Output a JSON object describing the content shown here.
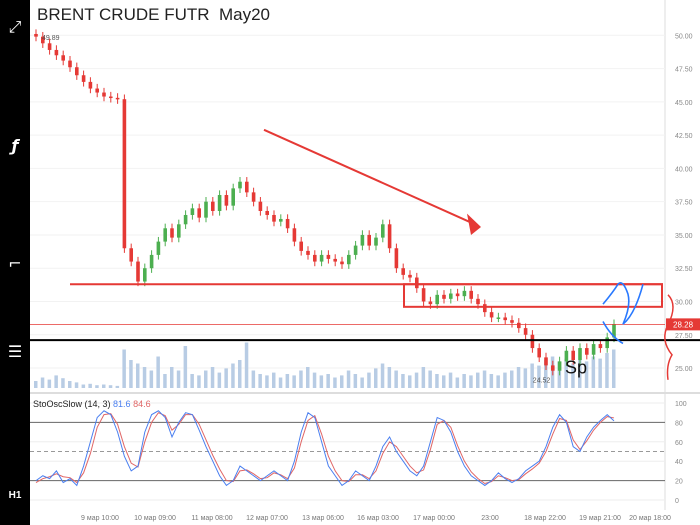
{
  "sidebar": {
    "buttons": [
      {
        "name": "fullscreen-icon",
        "glyph": "⤢"
      },
      {
        "name": "indicators-icon",
        "glyph": "ƒ"
      },
      {
        "name": "drawing-tools-icon",
        "glyph": "⌐"
      },
      {
        "name": "settings-icon",
        "glyph": "☰"
      }
    ],
    "timeframe": "H1"
  },
  "header": {
    "title": "BRENT CRUDE FUTR  May20"
  },
  "oscillator": {
    "name": "StoOscSlow (14, 3)",
    "k_value": "81.6",
    "d_value": "84.6"
  },
  "annotations": {
    "high_price": "49.89",
    "low_price": "24.52",
    "current_price": "28.28",
    "text": "Sp"
  },
  "colors": {
    "up": "#4caf50",
    "down": "#e53935",
    "k_line": "#4a7ff0",
    "d_line": "#e06666",
    "annotation_red": "#e53935",
    "annotation_blue": "#2979ff",
    "support_line": "#000000",
    "volume": "#b8cce4"
  },
  "chart_data": {
    "type": "line",
    "title": "BRENT CRUDE FUTR  May20",
    "price_axis": {
      "ticks": [
        "50.00",
        "47.50",
        "45.00",
        "42.50",
        "40.00",
        "37.50",
        "35.00",
        "32.50",
        "30.00",
        "27.50",
        "25.00"
      ],
      "ylim": [
        23.5,
        51
      ]
    },
    "x_ticks": [
      "9 мар 10:00",
      "10 мар 09:00",
      "11 мар 08:00",
      "12 мар 07:00",
      "13 мар 06:00",
      "16 мар 03:00",
      "17 мар 00:00",
      "23:00",
      "18 мар 22:00",
      "19 мар 21:00",
      "20 мар 18:00"
    ],
    "series": [
      {
        "name": "BRENT CRUDE FUTR  May20",
        "values": [
          49.9,
          49.4,
          48.9,
          48.5,
          48.1,
          47.6,
          47.0,
          46.5,
          46.0,
          45.7,
          45.4,
          45.3,
          45.2,
          34.0,
          33.0,
          31.5,
          32.5,
          33.5,
          34.5,
          35.5,
          34.8,
          35.8,
          36.5,
          37.0,
          36.3,
          37.5,
          36.8,
          38.0,
          37.2,
          38.5,
          39.0,
          38.2,
          37.5,
          36.8,
          36.5,
          36.0,
          36.2,
          35.5,
          34.5,
          33.8,
          33.5,
          33.0,
          33.5,
          33.2,
          33.0,
          32.8,
          33.5,
          34.2,
          35.0,
          34.2,
          34.8,
          35.8,
          34.0,
          32.5,
          32.0,
          31.8,
          31.0,
          30.0,
          29.8,
          30.5,
          30.2,
          30.6,
          30.4,
          30.8,
          30.2,
          29.8,
          29.2,
          28.8,
          28.8,
          28.6,
          28.4,
          28.0,
          27.5,
          26.5,
          25.8,
          25.2,
          24.8,
          25.5,
          26.3,
          25.6,
          26.5,
          26.0,
          26.8,
          26.5,
          27.3,
          28.3
        ]
      },
      {
        "name": "%K",
        "values": [
          20,
          25,
          22,
          30,
          18,
          22,
          15,
          35,
          60,
          85,
          92,
          88,
          70,
          45,
          30,
          35,
          70,
          88,
          92,
          85,
          65,
          80,
          90,
          88,
          72,
          55,
          40,
          25,
          15,
          20,
          35,
          30,
          25,
          20,
          25,
          30,
          25,
          20,
          40,
          70,
          90,
          85,
          60,
          35,
          25,
          15,
          20,
          30,
          25,
          20,
          35,
          55,
          65,
          50,
          40,
          30,
          25,
          35,
          60,
          85,
          82,
          70,
          50,
          35,
          25,
          20,
          15,
          20,
          28,
          22,
          18,
          22,
          30,
          35,
          40,
          55,
          75,
          88,
          80,
          55,
          50,
          65,
          75,
          82,
          88,
          81.6
        ]
      },
      {
        "name": "%D",
        "values": [
          18,
          22,
          24,
          27,
          24,
          23,
          18,
          28,
          48,
          75,
          88,
          89,
          78,
          55,
          38,
          34,
          60,
          80,
          90,
          87,
          72,
          78,
          88,
          88,
          78,
          62,
          46,
          32,
          20,
          19,
          30,
          31,
          27,
          22,
          23,
          28,
          26,
          22,
          33,
          60,
          82,
          87,
          68,
          45,
          30,
          20,
          19,
          26,
          26,
          22,
          30,
          48,
          60,
          55,
          45,
          35,
          28,
          31,
          52,
          78,
          82,
          75,
          56,
          40,
          29,
          22,
          17,
          19,
          25,
          23,
          20,
          21,
          27,
          32,
          38,
          50,
          68,
          84,
          82,
          62,
          52,
          61,
          72,
          80,
          86,
          84.6
        ]
      }
    ],
    "volumes": [
      0.1,
      0.15,
      0.12,
      0.18,
      0.14,
      0.1,
      0.08,
      0.05,
      0.06,
      0.04,
      0.05,
      0.04,
      0.03,
      0.55,
      0.4,
      0.35,
      0.3,
      0.25,
      0.45,
      0.2,
      0.3,
      0.25,
      0.6,
      0.2,
      0.18,
      0.25,
      0.3,
      0.22,
      0.28,
      0.35,
      0.4,
      0.65,
      0.25,
      0.2,
      0.18,
      0.22,
      0.15,
      0.2,
      0.18,
      0.25,
      0.3,
      0.22,
      0.18,
      0.2,
      0.15,
      0.18,
      0.25,
      0.2,
      0.15,
      0.22,
      0.28,
      0.35,
      0.3,
      0.25,
      0.2,
      0.18,
      0.22,
      0.3,
      0.25,
      0.2,
      0.18,
      0.22,
      0.15,
      0.2,
      0.18,
      0.22,
      0.25,
      0.2,
      0.18,
      0.22,
      0.25,
      0.3,
      0.28,
      0.35,
      0.32,
      0.4,
      0.45,
      0.38,
      0.42,
      0.35,
      0.4,
      0.38,
      0.45,
      0.42,
      0.5,
      0.55
    ],
    "oscillator_axis": {
      "ticks": [
        "100",
        "80",
        "60",
        "40",
        "20",
        "0"
      ],
      "ylim": [
        0,
        100
      ]
    }
  }
}
